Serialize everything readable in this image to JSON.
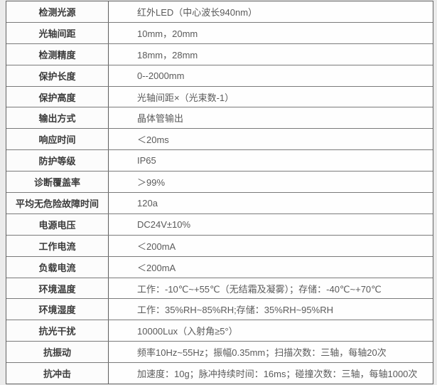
{
  "page": {
    "background_color": "#ebebeb",
    "table_border_color": "#636363",
    "label_text_color": "#3b3b3b",
    "value_text_color": "#5a5a5a"
  },
  "spec_table": {
    "rows": [
      {
        "label": "检测光源",
        "value": "红外LED（中心波长940nm）"
      },
      {
        "label": "光轴间距",
        "value": "10mm，20mm"
      },
      {
        "label": "检测精度",
        "value": "18mm，28mm"
      },
      {
        "label": "保护长度",
        "value": "0--2000mm"
      },
      {
        "label": "保护高度",
        "value": "光轴间距×（光束数-1）"
      },
      {
        "label": "输出方式",
        "value": "晶体管输出"
      },
      {
        "label": "响应时间",
        "value": "＜20ms"
      },
      {
        "label": "防护等级",
        "value": "IP65"
      },
      {
        "label": "诊断覆盖率",
        "value": "＞99%"
      },
      {
        "label": "平均无危险故障时间",
        "value": "120a"
      },
      {
        "label": "电源电压",
        "value": "DC24V±10%"
      },
      {
        "label": "工作电流",
        "value": "＜200mA"
      },
      {
        "label": "负载电流",
        "value": "＜200mA"
      },
      {
        "label": "环境温度",
        "value": "工作：-10℃~+55℃（无结霜及凝雾）；存储：-40℃~+70℃"
      },
      {
        "label": "环境湿度",
        "value": "工作：35%RH~85%RH;存储：35%RH~95%RH"
      },
      {
        "label": "抗光干扰",
        "value": "10000Lux（入射角≥5°）"
      },
      {
        "label": "抗振动",
        "value": "频率10Hz~55Hz；振幅0.35mm；扫描次数：三轴，每轴20次"
      },
      {
        "label": "抗冲击",
        "value": "加速度：10g；脉冲持续时间：16ms；碰撞次数：三轴，每轴1000次"
      }
    ]
  }
}
